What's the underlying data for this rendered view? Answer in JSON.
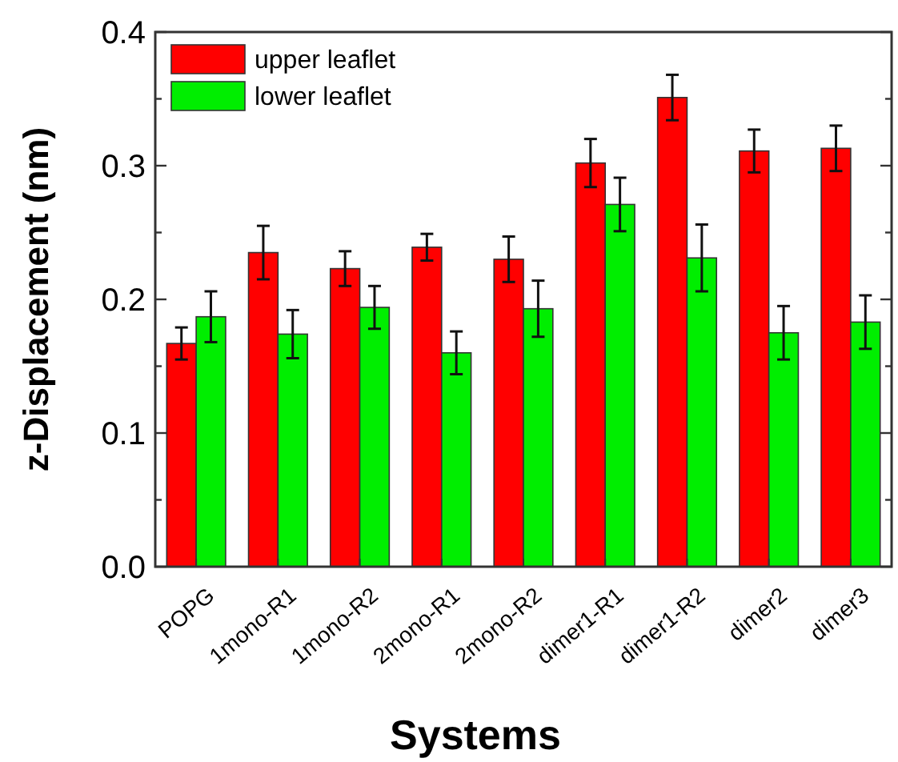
{
  "chart_data": {
    "type": "bar",
    "xlabel": "Systems",
    "ylabel": "z-Displacement (nm)",
    "categories": [
      "POPG",
      "1mono-R1",
      "1mono-R2",
      "2mono-R1",
      "2mono-R2",
      "dimer1-R1",
      "dimer1-R2",
      "dimer2",
      "dimer3"
    ],
    "series": [
      {
        "name": "upper leaflet",
        "color": "#ff0000",
        "values": [
          0.167,
          0.235,
          0.223,
          0.239,
          0.23,
          0.302,
          0.351,
          0.311,
          0.313
        ],
        "errors": [
          0.012,
          0.02,
          0.013,
          0.01,
          0.017,
          0.018,
          0.017,
          0.016,
          0.017
        ]
      },
      {
        "name": "lower leaflet",
        "color": "#00ee00",
        "values": [
          0.187,
          0.174,
          0.194,
          0.16,
          0.193,
          0.271,
          0.231,
          0.175,
          0.183
        ],
        "errors": [
          0.019,
          0.018,
          0.016,
          0.016,
          0.021,
          0.02,
          0.025,
          0.02,
          0.02
        ]
      }
    ],
    "ylim": [
      0,
      0.4
    ],
    "yticks": [
      {
        "value": 0,
        "label": "0.0"
      },
      {
        "value": 0.05,
        "label": null
      },
      {
        "value": 0.1,
        "label": "0.1"
      },
      {
        "value": 0.15,
        "label": null
      },
      {
        "value": 0.2,
        "label": "0.2"
      },
      {
        "value": 0.25,
        "label": null
      },
      {
        "value": 0.3,
        "label": "0.3"
      },
      {
        "value": 0.35,
        "label": null
      },
      {
        "value": 0.4,
        "label": "0.4"
      }
    ],
    "legend": "top left",
    "grid": false
  }
}
